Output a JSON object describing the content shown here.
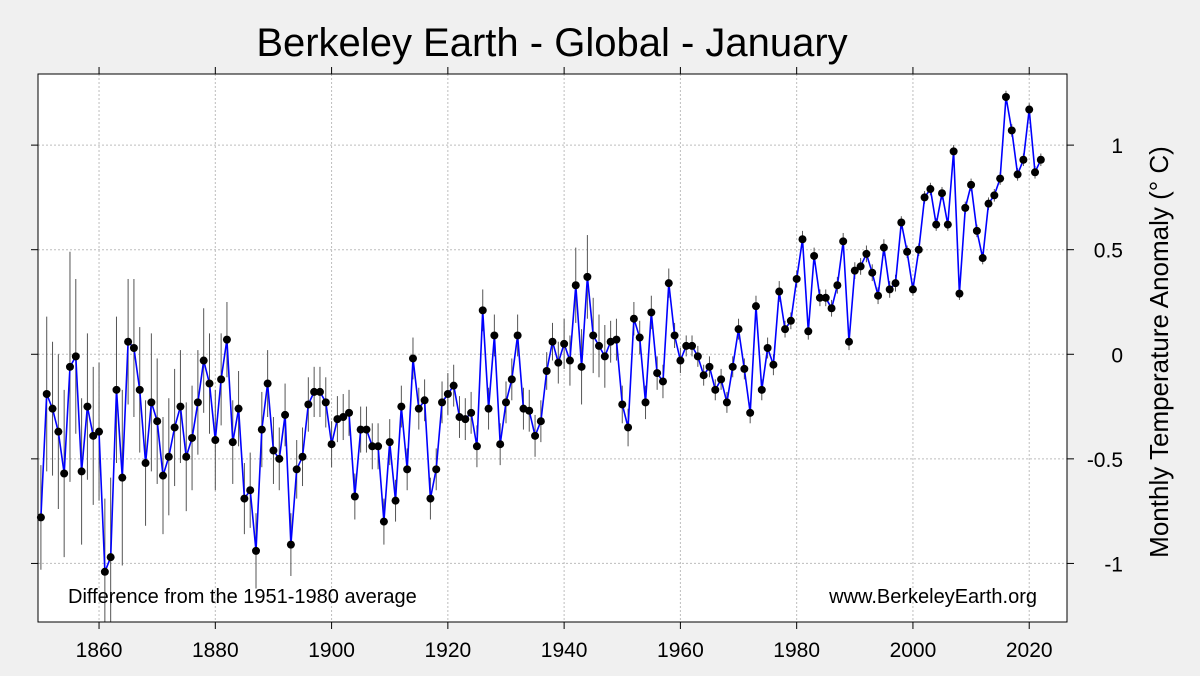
{
  "chart_data": {
    "type": "line",
    "title": "Berkeley Earth - Global - January",
    "ylabel": "Monthly Temperature Anomaly (° C)",
    "xlabel": "",
    "xlim": [
      1849.5,
      2026.5
    ],
    "ylim": [
      -1.28,
      1.34
    ],
    "x_ticks": [
      1860,
      1880,
      1900,
      1920,
      1940,
      1960,
      1980,
      2000,
      2020
    ],
    "x_tick_labels": [
      "1860",
      "1880",
      "1900",
      "1920",
      "1940",
      "1960",
      "1980",
      "2000",
      "2020"
    ],
    "y_ticks": [
      -1,
      -0.5,
      0,
      0.5,
      1
    ],
    "y_tick_labels": [
      "-1",
      "-0.5",
      "0",
      "0.5",
      "1"
    ],
    "grid": true,
    "annotation_left": "Difference from the 1951-1980 average",
    "annotation_right": "www.BerkeleyEarth.org",
    "colors": {
      "line": "#0000ff",
      "point": "#000000",
      "error_bar": "#555555",
      "grid": "#c0c0c0",
      "plot_bg": "#ffffff",
      "page_bg": "#f0f0f0"
    },
    "series": [
      {
        "x_start": 1850,
        "values": [
          -0.78,
          -0.19,
          -0.26,
          -0.37,
          -0.57,
          -0.06,
          -0.01,
          -0.56,
          -0.25,
          -0.39,
          -0.37,
          -1.04,
          -0.97,
          -0.17,
          -0.59,
          0.06,
          0.03,
          -0.17,
          -0.52,
          -0.23,
          -0.32,
          -0.58,
          -0.49,
          -0.35,
          -0.25,
          -0.49,
          -0.4,
          -0.23,
          -0.03,
          -0.14,
          -0.41,
          -0.12,
          0.07,
          -0.42,
          -0.26,
          -0.69,
          -0.65,
          -0.94,
          -0.36,
          -0.14,
          -0.46,
          -0.5,
          -0.29,
          -0.91,
          -0.55,
          -0.49,
          -0.24,
          -0.18,
          -0.18,
          -0.23,
          -0.43,
          -0.31,
          -0.3,
          -0.28,
          -0.68,
          -0.36,
          -0.36,
          -0.44,
          -0.44,
          -0.8,
          -0.42,
          -0.7,
          -0.25,
          -0.55,
          -0.02,
          -0.26,
          -0.22,
          -0.69,
          -0.55,
          -0.23,
          -0.19,
          -0.15,
          -0.3,
          -0.31,
          -0.28,
          -0.44,
          0.21,
          -0.26,
          0.09,
          -0.43,
          -0.23,
          -0.12,
          0.09,
          -0.26,
          -0.27,
          -0.39,
          -0.32,
          -0.08,
          0.06,
          -0.04,
          0.05,
          -0.03,
          0.33,
          -0.06,
          0.37,
          0.09,
          0.04,
          -0.01,
          0.06,
          0.07,
          -0.24,
          -0.35,
          0.17,
          0.08,
          -0.23,
          0.2,
          -0.09,
          -0.13,
          0.34,
          0.09,
          -0.03,
          0.04,
          0.04,
          -0.01,
          -0.1,
          -0.06,
          -0.17,
          -0.12,
          -0.23,
          -0.06,
          0.12,
          -0.07,
          -0.28,
          0.23,
          -0.17,
          0.03,
          -0.05,
          0.3,
          0.12,
          0.16,
          0.36,
          0.55,
          0.11,
          0.47,
          0.27,
          0.27,
          0.22,
          0.33,
          0.54,
          0.06,
          0.4,
          0.42,
          0.48,
          0.39,
          0.28,
          0.51,
          0.31,
          0.34,
          0.63,
          0.49,
          0.31,
          0.5,
          0.75,
          0.79,
          0.62,
          0.77,
          0.62,
          0.97,
          0.29,
          0.7,
          0.81,
          0.59,
          0.46,
          0.72,
          0.76,
          0.84,
          1.23,
          1.07,
          0.86,
          0.93,
          1.17,
          0.87,
          0.93
        ],
        "uncertainty": [
          0.25,
          0.37,
          0.32,
          0.37,
          0.4,
          0.55,
          0.37,
          0.35,
          0.35,
          0.33,
          0.33,
          0.35,
          0.38,
          0.35,
          0.42,
          0.3,
          0.33,
          0.3,
          0.3,
          0.33,
          0.3,
          0.28,
          0.28,
          0.28,
          0.27,
          0.26,
          0.25,
          0.25,
          0.25,
          0.24,
          0.24,
          0.22,
          0.18,
          0.2,
          0.18,
          0.17,
          0.18,
          0.18,
          0.18,
          0.16,
          0.16,
          0.15,
          0.15,
          0.15,
          0.14,
          0.14,
          0.13,
          0.12,
          0.12,
          0.12,
          0.11,
          0.11,
          0.11,
          0.11,
          0.11,
          0.11,
          0.11,
          0.11,
          0.11,
          0.11,
          0.11,
          0.1,
          0.1,
          0.1,
          0.1,
          0.1,
          0.1,
          0.1,
          0.1,
          0.1,
          0.1,
          0.1,
          0.1,
          0.1,
          0.1,
          0.1,
          0.1,
          0.1,
          0.1,
          0.1,
          0.1,
          0.1,
          0.1,
          0.1,
          0.1,
          0.1,
          0.1,
          0.09,
          0.09,
          0.1,
          0.12,
          0.12,
          0.18,
          0.18,
          0.2,
          0.18,
          0.15,
          0.15,
          0.1,
          0.1,
          0.09,
          0.09,
          0.08,
          0.08,
          0.08,
          0.08,
          0.08,
          0.08,
          0.07,
          0.06,
          0.06,
          0.05,
          0.05,
          0.05,
          0.05,
          0.05,
          0.05,
          0.05,
          0.05,
          0.05,
          0.05,
          0.05,
          0.05,
          0.05,
          0.05,
          0.05,
          0.05,
          0.05,
          0.04,
          0.04,
          0.04,
          0.04,
          0.04,
          0.04,
          0.04,
          0.04,
          0.04,
          0.04,
          0.04,
          0.04,
          0.04,
          0.04,
          0.04,
          0.04,
          0.04,
          0.04,
          0.04,
          0.04,
          0.03,
          0.03,
          0.03,
          0.03,
          0.03,
          0.03,
          0.03,
          0.03,
          0.03,
          0.03,
          0.03,
          0.03,
          0.03,
          0.03,
          0.03,
          0.03,
          0.03,
          0.03,
          0.03,
          0.03,
          0.03,
          0.03,
          0.03,
          0.03,
          0.03,
          0.03,
          0.03,
          0.03,
          0.03
        ]
      }
    ]
  }
}
